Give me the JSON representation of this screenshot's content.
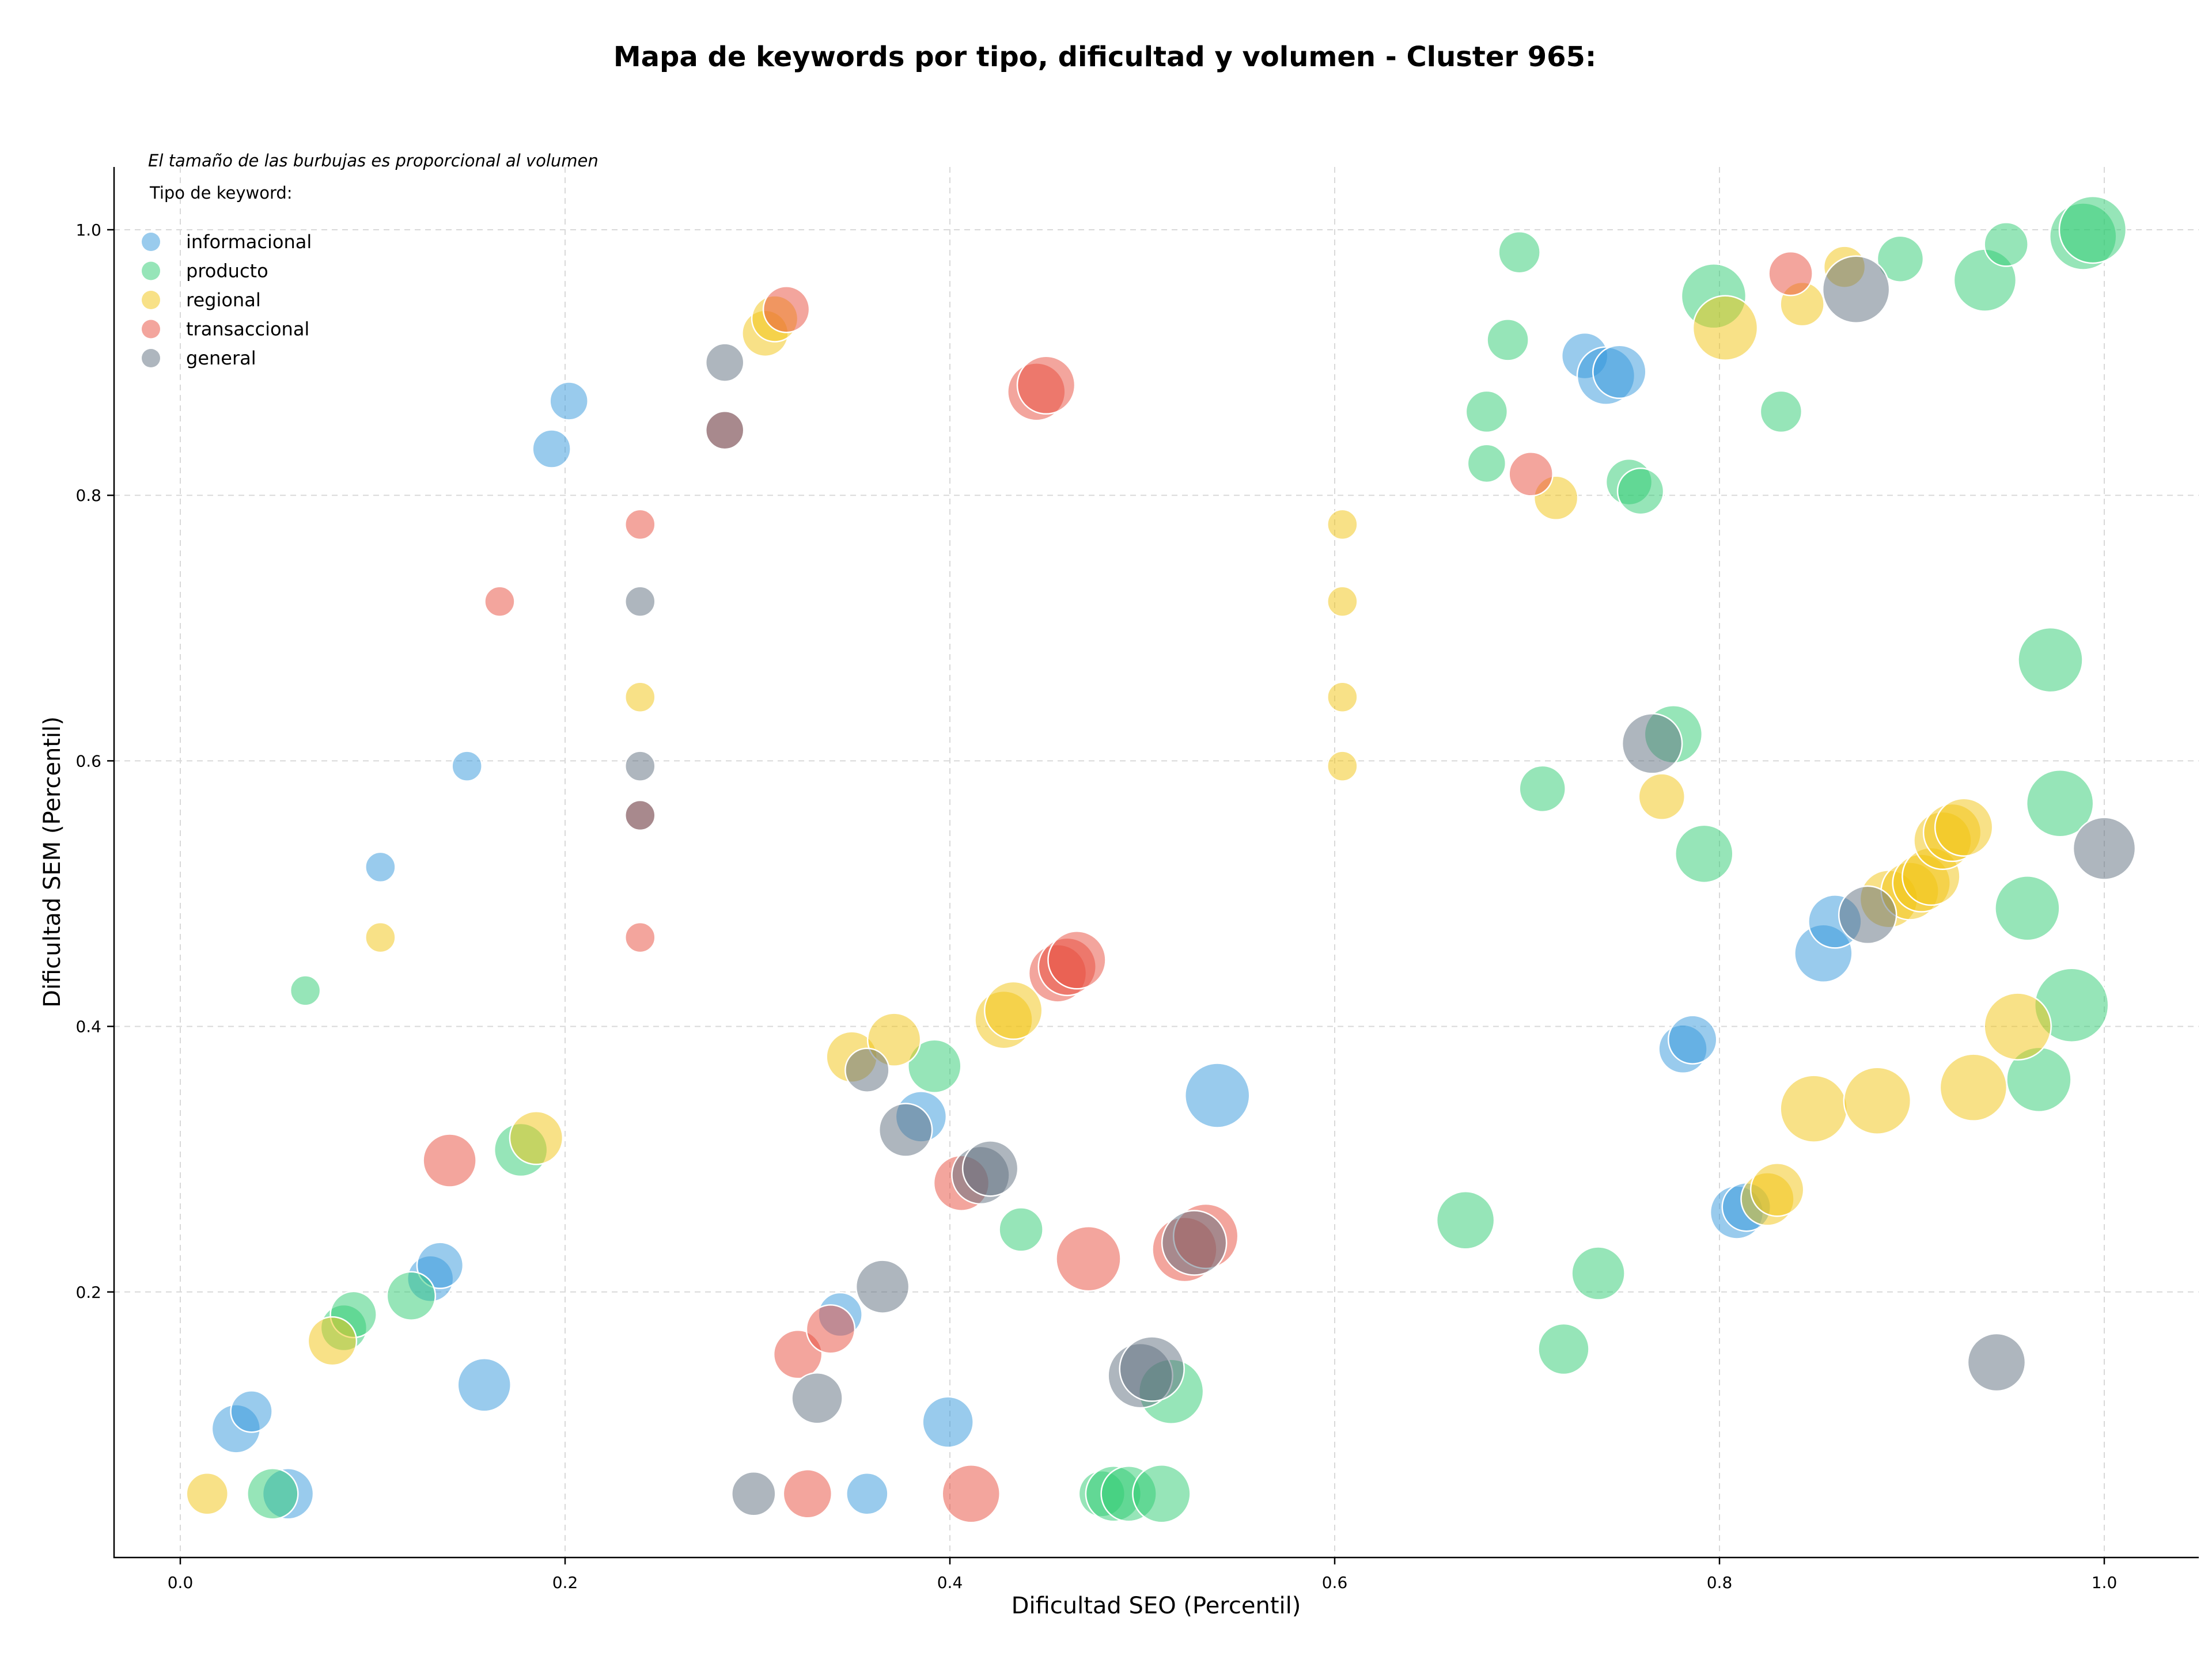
{
  "chart_data": {
    "type": "scatter",
    "title": "Mapa de keywords por tipo, dificultad y volumen - Cluster 965:",
    "xlabel": "Dificultad SEO (Percentil)",
    "ylabel": "Dificultad SEM (Percentil)",
    "xlim": [
      -0.035,
      1.048
    ],
    "ylim": [
      0,
      1.048
    ],
    "xticks": [
      0.0,
      0.2,
      0.4,
      0.6,
      0.8,
      1.0
    ],
    "yticks": [
      0.2,
      0.4,
      0.6,
      0.8,
      1.0
    ],
    "xtick_labels": [
      "0.0",
      "0.2",
      "0.4",
      "0.6",
      "0.8",
      "1.0"
    ],
    "ytick_labels": [
      "0.2",
      "0.4",
      "0.6",
      "0.8",
      "1.0"
    ],
    "grid": true,
    "annotation": "El tamaño de las burbujas es proporcional al volumen",
    "legend_title": "Tipo de keyword:",
    "legend_position": "top-left",
    "series": [
      {
        "name": "informacional",
        "color": "#3498db",
        "points": [
          {
            "x": 0.029,
            "y": 0.097,
            "r": 42
          },
          {
            "x": 0.037,
            "y": 0.11,
            "r": 36
          },
          {
            "x": 0.056,
            "y": 0.048,
            "r": 44
          },
          {
            "x": 0.13,
            "y": 0.21,
            "r": 40
          },
          {
            "x": 0.135,
            "y": 0.22,
            "r": 40
          },
          {
            "x": 0.158,
            "y": 0.13,
            "r": 46
          },
          {
            "x": 0.149,
            "y": 0.596,
            "r": 26
          },
          {
            "x": 0.104,
            "y": 0.52,
            "r": 26
          },
          {
            "x": 0.193,
            "y": 0.835,
            "r": 33
          },
          {
            "x": 0.202,
            "y": 0.871,
            "r": 33
          },
          {
            "x": 0.343,
            "y": 0.183,
            "r": 38
          },
          {
            "x": 0.357,
            "y": 0.048,
            "r": 36
          },
          {
            "x": 0.385,
            "y": 0.332,
            "r": 44
          },
          {
            "x": 0.399,
            "y": 0.102,
            "r": 44
          },
          {
            "x": 0.539,
            "y": 0.348,
            "r": 56
          },
          {
            "x": 0.73,
            "y": 0.905,
            "r": 40
          },
          {
            "x": 0.741,
            "y": 0.89,
            "r": 50
          },
          {
            "x": 0.748,
            "y": 0.893,
            "r": 46
          },
          {
            "x": 0.781,
            "y": 0.383,
            "r": 42
          },
          {
            "x": 0.786,
            "y": 0.39,
            "r": 42
          },
          {
            "x": 0.809,
            "y": 0.26,
            "r": 46
          },
          {
            "x": 0.814,
            "y": 0.264,
            "r": 42
          },
          {
            "x": 0.854,
            "y": 0.455,
            "r": 50
          },
          {
            "x": 0.86,
            "y": 0.479,
            "r": 46
          }
        ]
      },
      {
        "name": "producto",
        "color": "#2ecc71",
        "points": [
          {
            "x": 0.048,
            "y": 0.048,
            "r": 44
          },
          {
            "x": 0.065,
            "y": 0.427,
            "r": 26
          },
          {
            "x": 0.085,
            "y": 0.173,
            "r": 40
          },
          {
            "x": 0.09,
            "y": 0.183,
            "r": 40
          },
          {
            "x": 0.12,
            "y": 0.197,
            "r": 42
          },
          {
            "x": 0.177,
            "y": 0.307,
            "r": 46
          },
          {
            "x": 0.392,
            "y": 0.37,
            "r": 46
          },
          {
            "x": 0.437,
            "y": 0.247,
            "r": 38
          },
          {
            "x": 0.479,
            "y": 0.048,
            "r": 40
          },
          {
            "x": 0.485,
            "y": 0.048,
            "r": 48
          },
          {
            "x": 0.493,
            "y": 0.048,
            "r": 48
          },
          {
            "x": 0.51,
            "y": 0.048,
            "r": 50
          },
          {
            "x": 0.515,
            "y": 0.125,
            "r": 56
          },
          {
            "x": 0.668,
            "y": 0.254,
            "r": 50
          },
          {
            "x": 0.679,
            "y": 0.863,
            "r": 36
          },
          {
            "x": 0.679,
            "y": 0.824,
            "r": 33
          },
          {
            "x": 0.69,
            "y": 0.917,
            "r": 36
          },
          {
            "x": 0.696,
            "y": 0.983,
            "r": 36
          },
          {
            "x": 0.708,
            "y": 0.579,
            "r": 40
          },
          {
            "x": 0.719,
            "y": 0.157,
            "r": 44
          },
          {
            "x": 0.737,
            "y": 0.214,
            "r": 46
          },
          {
            "x": 0.753,
            "y": 0.81,
            "r": 40
          },
          {
            "x": 0.759,
            "y": 0.803,
            "r": 40
          },
          {
            "x": 0.776,
            "y": 0.62,
            "r": 50
          },
          {
            "x": 0.792,
            "y": 0.53,
            "r": 50
          },
          {
            "x": 0.797,
            "y": 0.95,
            "r": 56
          },
          {
            "x": 0.832,
            "y": 0.863,
            "r": 36
          },
          {
            "x": 0.894,
            "y": 0.978,
            "r": 40
          },
          {
            "x": 0.938,
            "y": 0.962,
            "r": 54
          },
          {
            "x": 0.949,
            "y": 0.989,
            "r": 38
          },
          {
            "x": 0.96,
            "y": 0.489,
            "r": 56
          },
          {
            "x": 0.966,
            "y": 0.36,
            "r": 56
          },
          {
            "x": 0.972,
            "y": 0.676,
            "r": 56
          },
          {
            "x": 0.977,
            "y": 0.568,
            "r": 58
          },
          {
            "x": 0.983,
            "y": 0.416,
            "r": 64
          },
          {
            "x": 0.989,
            "y": 0.995,
            "r": 58
          },
          {
            "x": 0.994,
            "y": 1.0,
            "r": 58
          }
        ]
      },
      {
        "name": "regional",
        "color": "#f1c40f",
        "points": [
          {
            "x": 0.014,
            "y": 0.048,
            "r": 36
          },
          {
            "x": 0.079,
            "y": 0.163,
            "r": 42
          },
          {
            "x": 0.104,
            "y": 0.467,
            "r": 26
          },
          {
            "x": 0.185,
            "y": 0.316,
            "r": 46
          },
          {
            "x": 0.239,
            "y": 0.648,
            "r": 26
          },
          {
            "x": 0.304,
            "y": 0.922,
            "r": 40
          },
          {
            "x": 0.309,
            "y": 0.933,
            "r": 40
          },
          {
            "x": 0.349,
            "y": 0.377,
            "r": 44
          },
          {
            "x": 0.371,
            "y": 0.39,
            "r": 46
          },
          {
            "x": 0.428,
            "y": 0.405,
            "r": 50
          },
          {
            "x": 0.433,
            "y": 0.412,
            "r": 50
          },
          {
            "x": 0.604,
            "y": 0.778,
            "r": 26
          },
          {
            "x": 0.604,
            "y": 0.72,
            "r": 26
          },
          {
            "x": 0.604,
            "y": 0.648,
            "r": 26
          },
          {
            "x": 0.604,
            "y": 0.596,
            "r": 26
          },
          {
            "x": 0.715,
            "y": 0.798,
            "r": 38
          },
          {
            "x": 0.77,
            "y": 0.573,
            "r": 40
          },
          {
            "x": 0.803,
            "y": 0.926,
            "r": 56
          },
          {
            "x": 0.825,
            "y": 0.27,
            "r": 46
          },
          {
            "x": 0.83,
            "y": 0.277,
            "r": 46
          },
          {
            "x": 0.843,
            "y": 0.944,
            "r": 38
          },
          {
            "x": 0.849,
            "y": 0.338,
            "r": 58
          },
          {
            "x": 0.865,
            "y": 0.972,
            "r": 36
          },
          {
            "x": 0.882,
            "y": 0.344,
            "r": 58
          },
          {
            "x": 0.888,
            "y": 0.496,
            "r": 50
          },
          {
            "x": 0.899,
            "y": 0.502,
            "r": 50
          },
          {
            "x": 0.905,
            "y": 0.508,
            "r": 50
          },
          {
            "x": 0.91,
            "y": 0.513,
            "r": 50
          },
          {
            "x": 0.916,
            "y": 0.54,
            "r": 50
          },
          {
            "x": 0.921,
            "y": 0.546,
            "r": 50
          },
          {
            "x": 0.927,
            "y": 0.55,
            "r": 50
          },
          {
            "x": 0.932,
            "y": 0.354,
            "r": 58
          },
          {
            "x": 0.955,
            "y": 0.4,
            "r": 58
          }
        ]
      },
      {
        "name": "transaccional",
        "color": "#e74c3c",
        "points": [
          {
            "x": 0.14,
            "y": 0.299,
            "r": 46
          },
          {
            "x": 0.166,
            "y": 0.72,
            "r": 26
          },
          {
            "x": 0.239,
            "y": 0.778,
            "r": 26
          },
          {
            "x": 0.239,
            "y": 0.559,
            "r": 26
          },
          {
            "x": 0.239,
            "y": 0.467,
            "r": 26
          },
          {
            "x": 0.283,
            "y": 0.849,
            "r": 33
          },
          {
            "x": 0.315,
            "y": 0.94,
            "r": 40
          },
          {
            "x": 0.321,
            "y": 0.153,
            "r": 42
          },
          {
            "x": 0.326,
            "y": 0.048,
            "r": 42
          },
          {
            "x": 0.338,
            "y": 0.172,
            "r": 42
          },
          {
            "x": 0.406,
            "y": 0.282,
            "r": 48
          },
          {
            "x": 0.411,
            "y": 0.048,
            "r": 50
          },
          {
            "x": 0.445,
            "y": 0.878,
            "r": 50
          },
          {
            "x": 0.45,
            "y": 0.883,
            "r": 50
          },
          {
            "x": 0.456,
            "y": 0.44,
            "r": 50
          },
          {
            "x": 0.461,
            "y": 0.445,
            "r": 50
          },
          {
            "x": 0.466,
            "y": 0.45,
            "r": 50
          },
          {
            "x": 0.472,
            "y": 0.225,
            "r": 56
          },
          {
            "x": 0.522,
            "y": 0.232,
            "r": 56
          },
          {
            "x": 0.533,
            "y": 0.242,
            "r": 56
          },
          {
            "x": 0.702,
            "y": 0.816,
            "r": 38
          },
          {
            "x": 0.837,
            "y": 0.967,
            "r": 38
          }
        ]
      },
      {
        "name": "general",
        "color": "#5d6d7e",
        "points": [
          {
            "x": 0.239,
            "y": 0.72,
            "r": 26
          },
          {
            "x": 0.239,
            "y": 0.596,
            "r": 26
          },
          {
            "x": 0.239,
            "y": 0.559,
            "r": 26
          },
          {
            "x": 0.283,
            "y": 0.9,
            "r": 33
          },
          {
            "x": 0.283,
            "y": 0.849,
            "r": 33
          },
          {
            "x": 0.298,
            "y": 0.048,
            "r": 38
          },
          {
            "x": 0.331,
            "y": 0.12,
            "r": 44
          },
          {
            "x": 0.357,
            "y": 0.367,
            "r": 38
          },
          {
            "x": 0.365,
            "y": 0.204,
            "r": 46
          },
          {
            "x": 0.377,
            "y": 0.322,
            "r": 46
          },
          {
            "x": 0.416,
            "y": 0.288,
            "r": 50
          },
          {
            "x": 0.421,
            "y": 0.293,
            "r": 48
          },
          {
            "x": 0.499,
            "y": 0.137,
            "r": 56
          },
          {
            "x": 0.505,
            "y": 0.142,
            "r": 56
          },
          {
            "x": 0.527,
            "y": 0.237,
            "r": 56
          },
          {
            "x": 0.765,
            "y": 0.613,
            "r": 52
          },
          {
            "x": 0.871,
            "y": 0.955,
            "r": 58
          },
          {
            "x": 0.877,
            "y": 0.484,
            "r": 50
          },
          {
            "x": 0.944,
            "y": 0.147,
            "r": 50
          },
          {
            "x": 1.0,
            "y": 0.534,
            "r": 54
          }
        ]
      }
    ]
  }
}
